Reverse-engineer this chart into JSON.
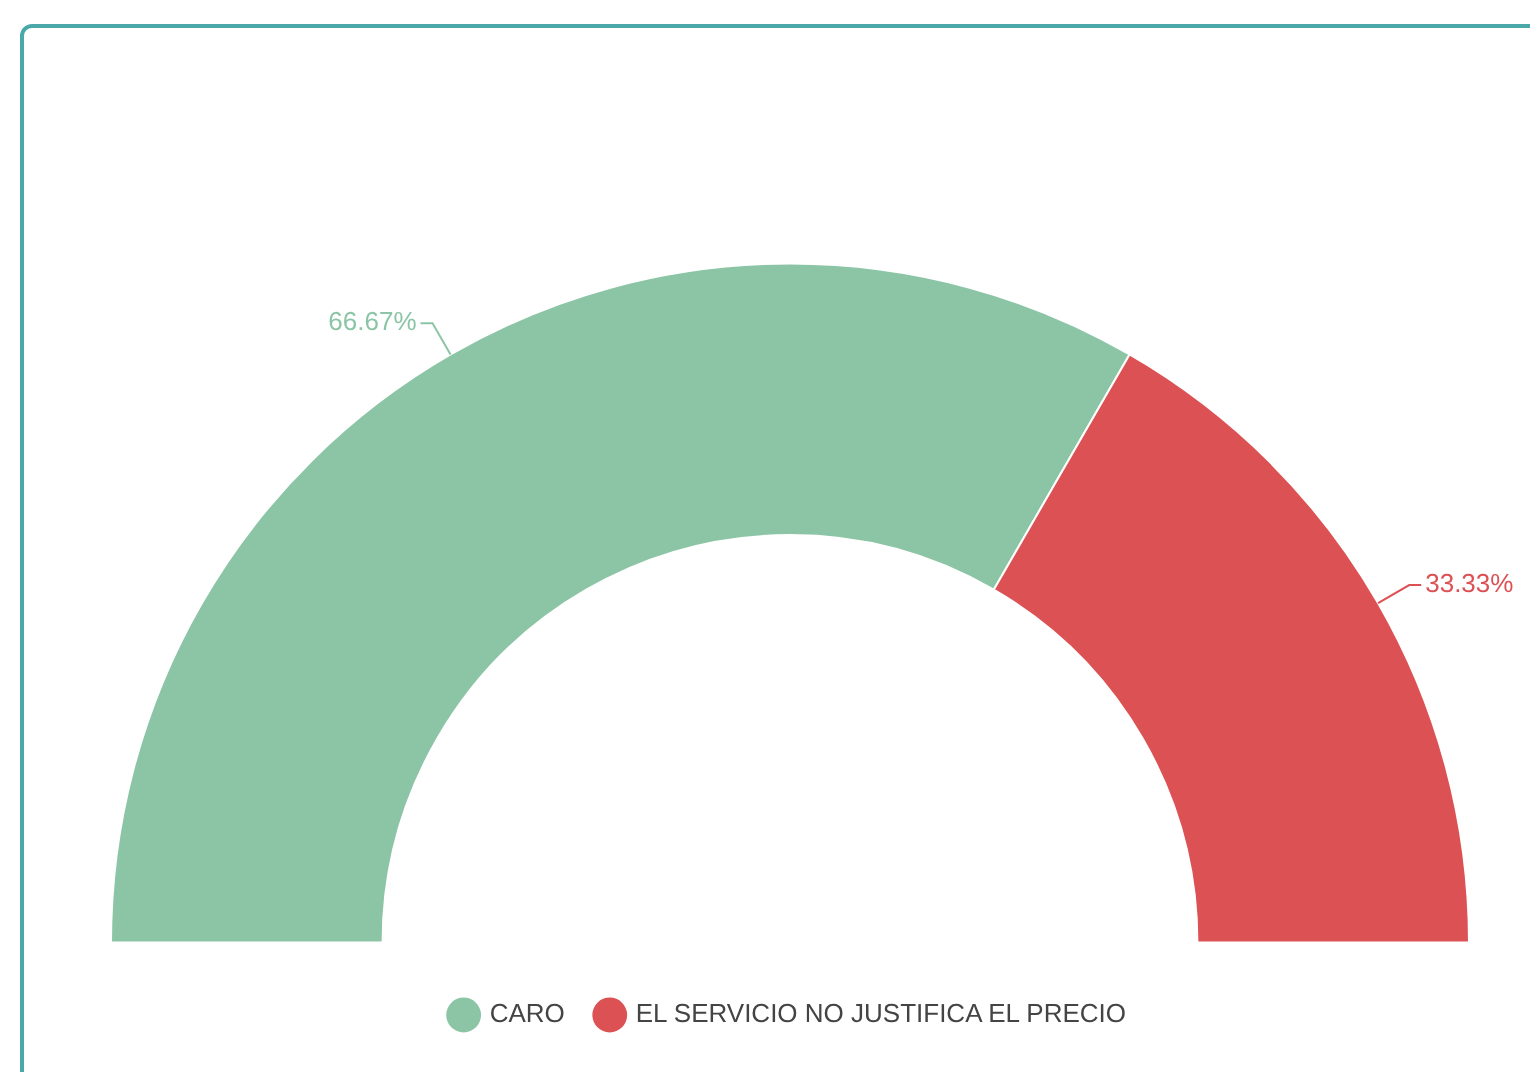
{
  "chart_data": {
    "type": "donut",
    "categories": [
      "CARO",
      "EL SERVICIO NO JUSTIFICA EL PRECIO"
    ],
    "values": [
      66.67,
      33.33
    ],
    "colors": [
      "#8cc5a6",
      "#dc5254"
    ],
    "value_labels": [
      "66.67%",
      "33.33%"
    ],
    "legend": "bottom"
  }
}
